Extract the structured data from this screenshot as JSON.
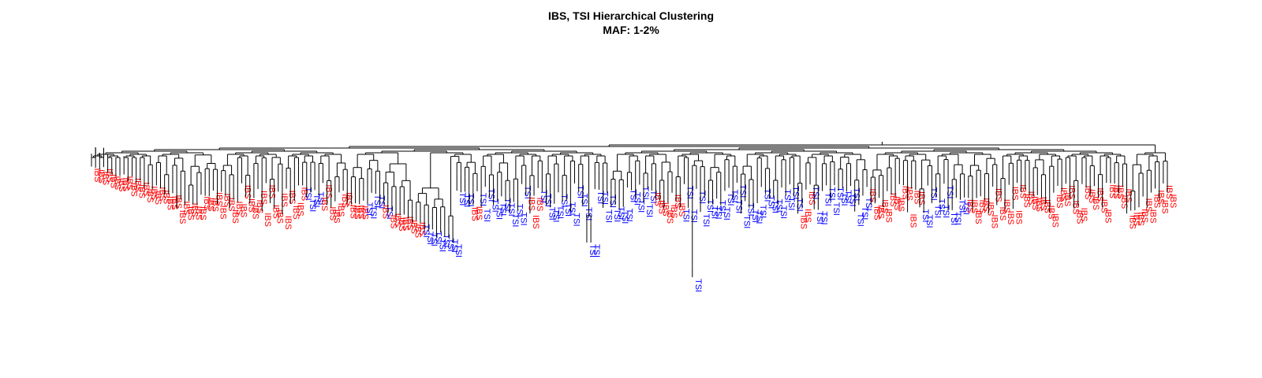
{
  "title": "IBS, TSI Hierarchical Clustering",
  "subtitle": "MAF: 1-2%",
  "groups": [
    {
      "label": "IBS",
      "color": "#ff0000"
    },
    {
      "label": "TSI",
      "color": "#0000ff"
    }
  ],
  "leaf_sequence": "IIIIIIIIIIIIIIIIIIIIIIIIIIIIIIIIIIIIIIIIIIIIIIIIIIIITTTTIIIIIIIIIIITTTTITIIIIIIIITTTTTTTTTTTTIITTTTTTTTTTTTIIITTTTTTTTTTTTTTTTTTTTTTTTTTTTIIIIIIITTTTTTTTTTTTTTTTTTTTTTTTTTTTTIIITTTTTTTTTTTTTTIIIIIIIIIIIIITTTTTTTTTTTIIIIIIIIIIIIIIIIIIIIIIIIIIIIIIIIIIIIIIIIIIIIIIIIIII"
}
